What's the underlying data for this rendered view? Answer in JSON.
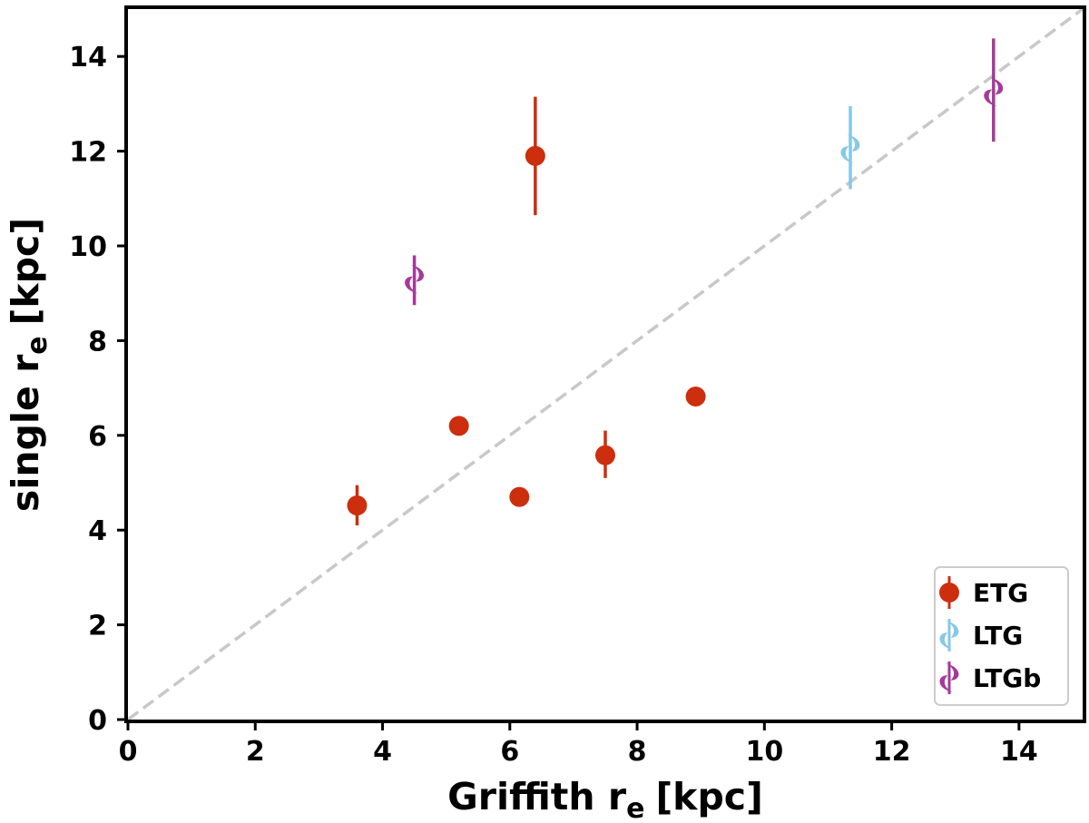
{
  "chart_data": {
    "type": "scatter",
    "xlabel": "Griffith r",
    "xlabel_subscript": "e",
    "xlabel_unit": "[kpc]",
    "ylabel": "single r",
    "ylabel_subscript": "e",
    "ylabel_unit": "[kpc]",
    "xlim": [
      0,
      15
    ],
    "ylim": [
      0,
      15
    ],
    "xticks": [
      0,
      2,
      4,
      6,
      8,
      10,
      12,
      14
    ],
    "yticks": [
      0,
      2,
      4,
      6,
      8,
      10,
      12,
      14
    ],
    "grid": false,
    "legend_position": "bottom-right",
    "reference_line": {
      "style": "dashed",
      "color": "#c8c8c8",
      "points": [
        [
          0,
          0
        ],
        [
          15,
          15
        ]
      ]
    },
    "series": [
      {
        "name": "ETG",
        "color": "#cc2e0e",
        "marker": "circle",
        "points": [
          {
            "x": 3.6,
            "y": 4.52,
            "ylow": 4.1,
            "yhigh": 4.95
          },
          {
            "x": 5.2,
            "y": 6.2
          },
          {
            "x": 6.15,
            "y": 4.7
          },
          {
            "x": 6.4,
            "y": 11.9,
            "ylow": 10.65,
            "yhigh": 13.15
          },
          {
            "x": 7.5,
            "y": 5.58,
            "ylow": 5.1,
            "yhigh": 6.1
          },
          {
            "x": 8.92,
            "y": 6.82
          }
        ]
      },
      {
        "name": "LTG",
        "color": "#86c8e6",
        "marker": "spiral",
        "points": [
          {
            "x": 11.35,
            "y": 12.05,
            "ylow": 11.2,
            "yhigh": 12.95
          }
        ]
      },
      {
        "name": "LTGb",
        "color": "#a6399a",
        "marker": "spiral",
        "points": [
          {
            "x": 4.5,
            "y": 9.3,
            "ylow": 8.75,
            "yhigh": 9.8
          },
          {
            "x": 13.6,
            "y": 13.25,
            "ylow": 12.2,
            "yhigh": 14.38
          }
        ]
      }
    ]
  }
}
